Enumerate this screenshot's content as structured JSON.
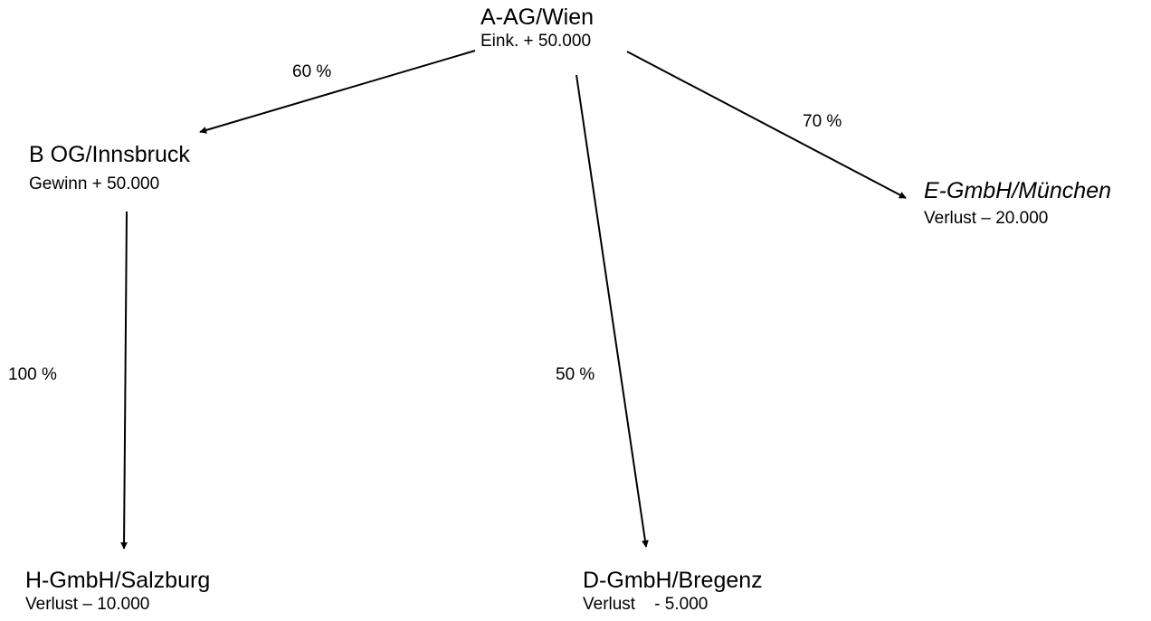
{
  "nodes": {
    "a_ag": {
      "name": "A-AG/Wien",
      "value": "Eink. + 50.000"
    },
    "b_og": {
      "name": "B OG/Innsbruck",
      "value": "Gewinn + 50.000"
    },
    "e_gmbh": {
      "name": "E-GmbH/München",
      "value": "Verlust – 20.000"
    },
    "h_gmbh": {
      "name": "H-GmbH/Salzburg",
      "value": "Verlust – 10.000"
    },
    "d_gmbh": {
      "name": "D-GmbH/Bregenz",
      "value": "Verlust    - 5.000"
    }
  },
  "edges": {
    "a_to_b": "60 %",
    "a_to_e": "70 %",
    "a_to_d": "50 %",
    "b_to_h": "100 %"
  }
}
